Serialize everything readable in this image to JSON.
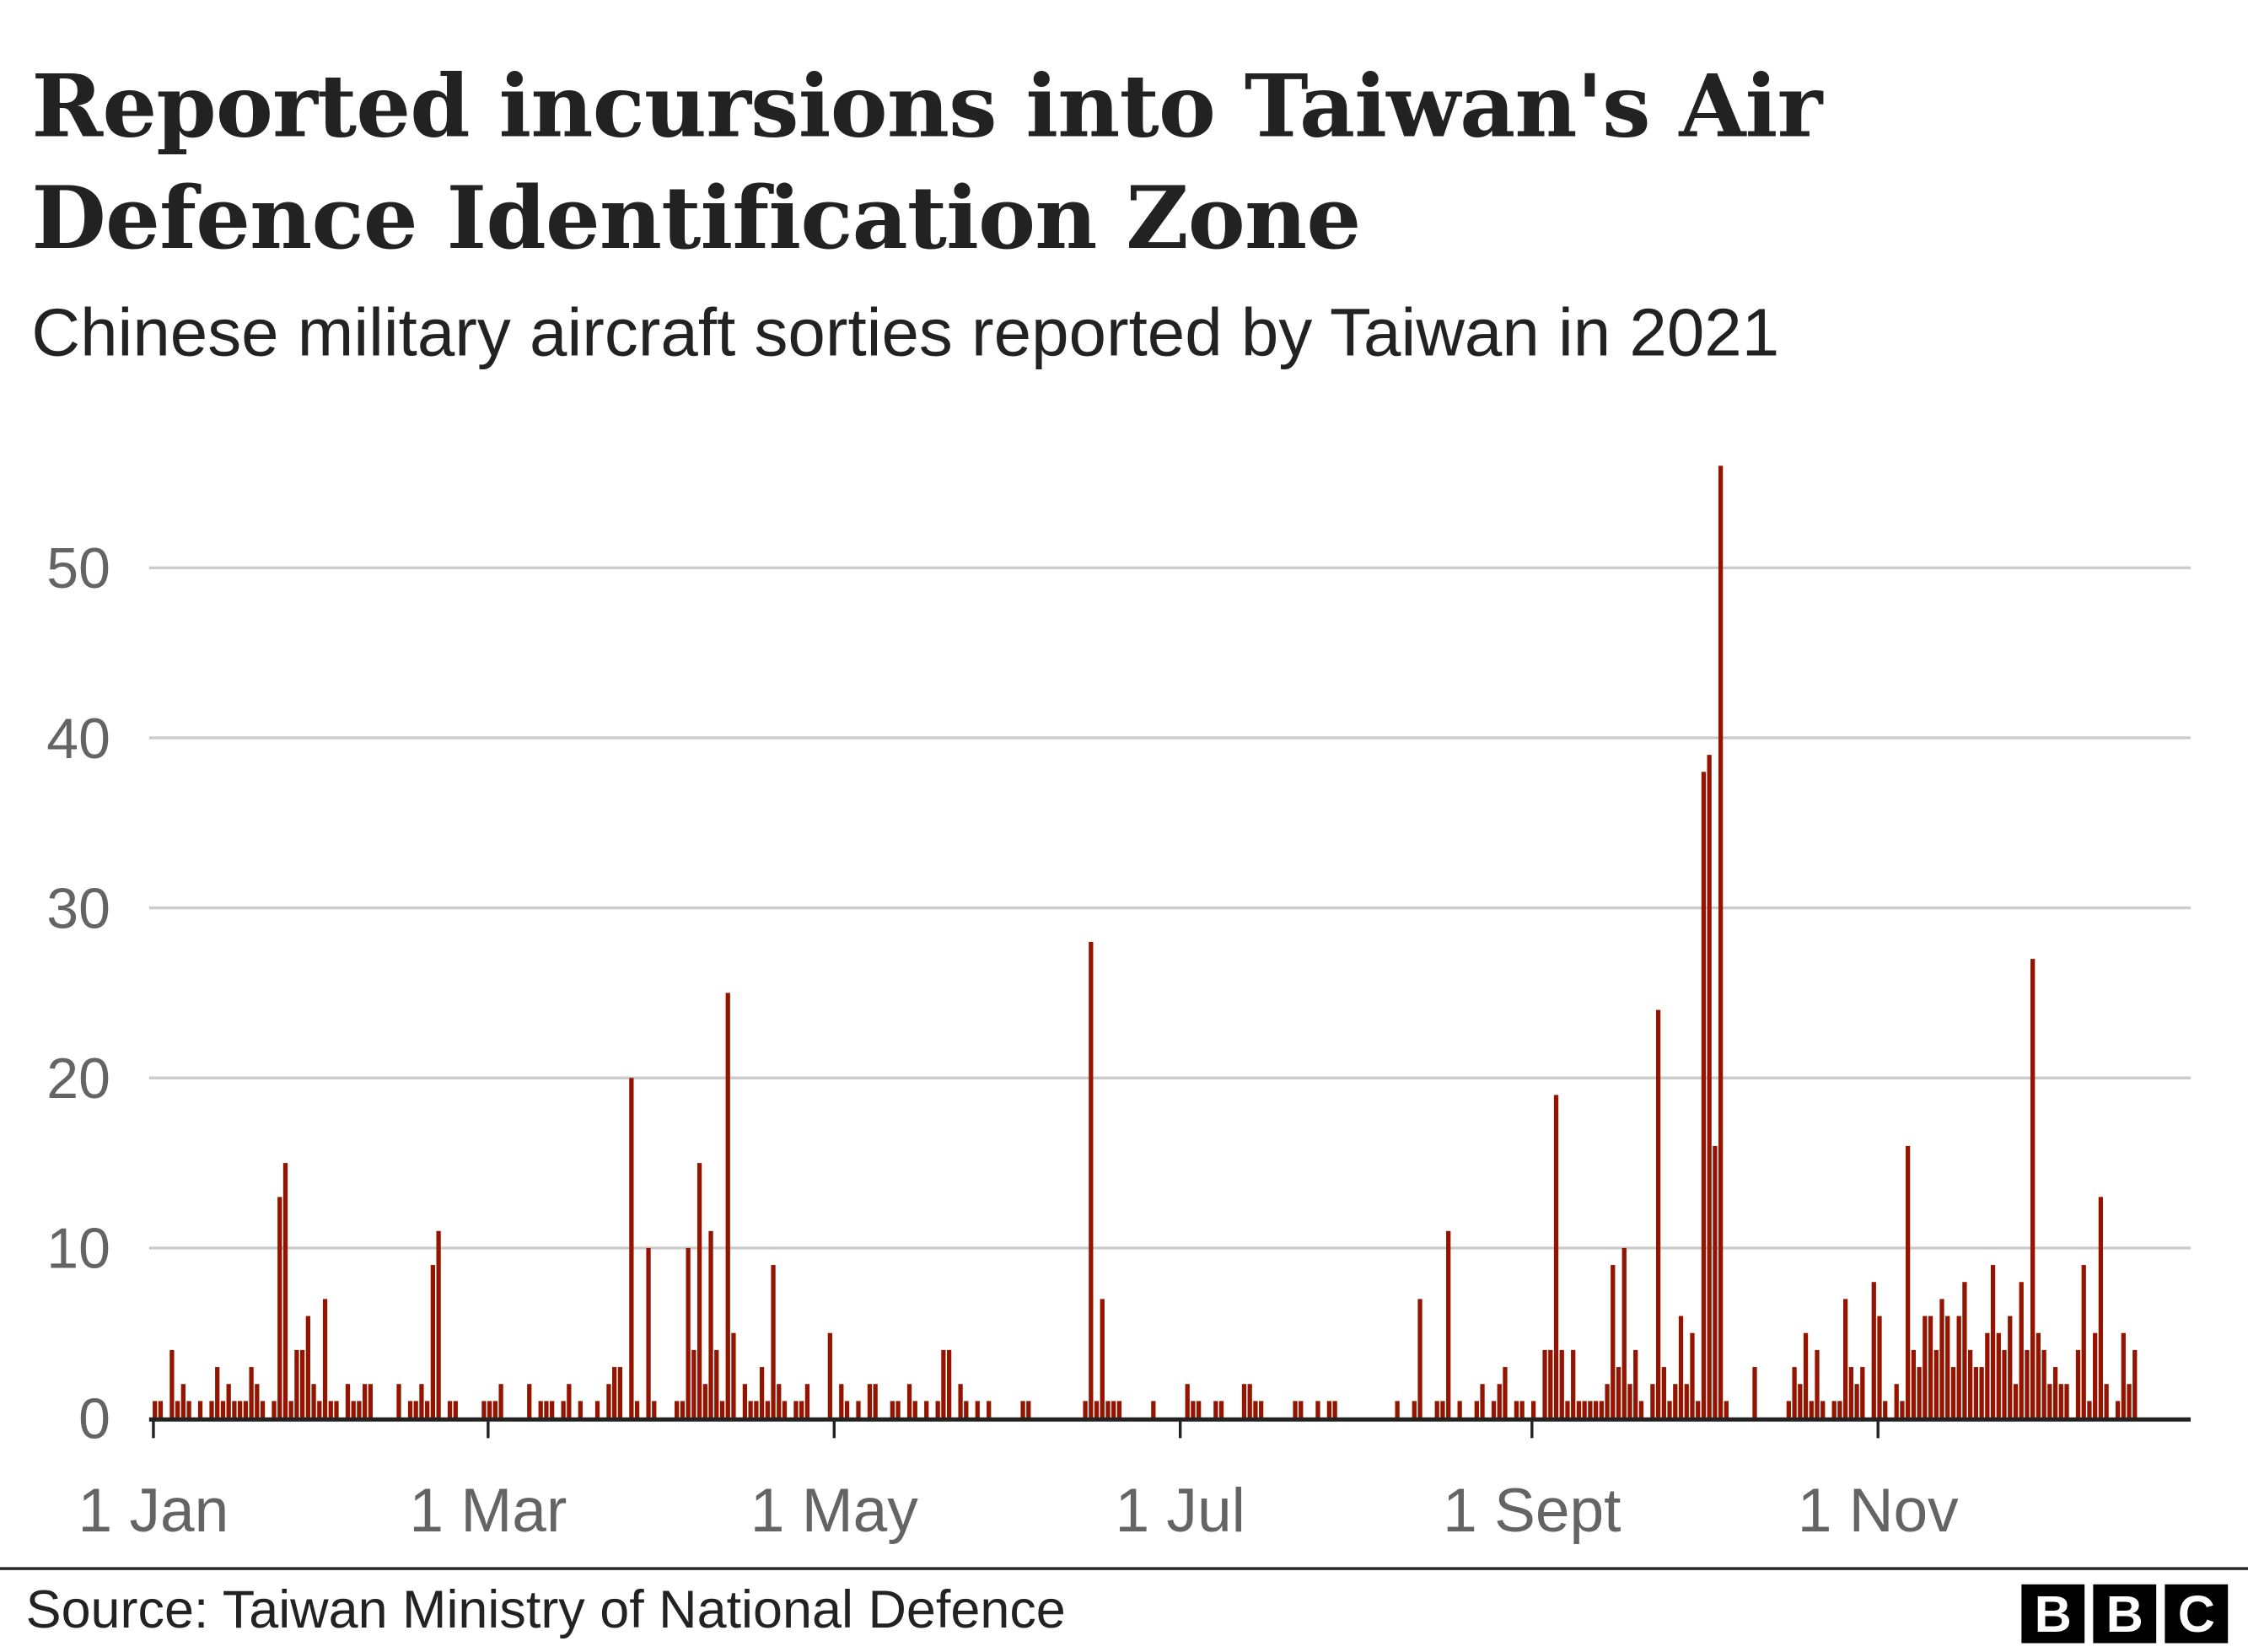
{
  "chart_data": {
    "type": "bar",
    "title": "Reported incursions into Taiwan's Air Defence Identification Zone",
    "subtitle": "Chinese military aircraft sorties reported by Taiwan in 2021",
    "xlabel": "",
    "ylabel": "",
    "ylim": [
      0,
      56
    ],
    "xlim_days": [
      0,
      360
    ],
    "grid": true,
    "yticks": [
      {
        "value": 0,
        "label": "0"
      },
      {
        "value": 10,
        "label": "10"
      },
      {
        "value": 20,
        "label": "20"
      },
      {
        "value": 30,
        "label": "30"
      },
      {
        "value": 40,
        "label": "40"
      },
      {
        "value": 50,
        "label": "50"
      }
    ],
    "xticks": [
      {
        "day": 0,
        "label": "1 Jan"
      },
      {
        "day": 59,
        "label": "1 Mar"
      },
      {
        "day": 120,
        "label": "1 May"
      },
      {
        "day": 181,
        "label": "1 Jul"
      },
      {
        "day": 243,
        "label": "1 Sept"
      },
      {
        "day": 304,
        "label": "1 Nov"
      }
    ],
    "series_name": "Sorties per day (day of year, count)",
    "points": [
      [
        0,
        1
      ],
      [
        1,
        1
      ],
      [
        3,
        4
      ],
      [
        4,
        1
      ],
      [
        5,
        2
      ],
      [
        6,
        1
      ],
      [
        8,
        1
      ],
      [
        10,
        1
      ],
      [
        11,
        3
      ],
      [
        12,
        1
      ],
      [
        13,
        2
      ],
      [
        14,
        1
      ],
      [
        15,
        1
      ],
      [
        16,
        1
      ],
      [
        17,
        3
      ],
      [
        18,
        2
      ],
      [
        19,
        1
      ],
      [
        21,
        1
      ],
      [
        22,
        13
      ],
      [
        23,
        15
      ],
      [
        24,
        1
      ],
      [
        25,
        4
      ],
      [
        26,
        4
      ],
      [
        27,
        6
      ],
      [
        28,
        2
      ],
      [
        29,
        1
      ],
      [
        30,
        7
      ],
      [
        31,
        1
      ],
      [
        32,
        1
      ],
      [
        34,
        2
      ],
      [
        35,
        1
      ],
      [
        36,
        1
      ],
      [
        37,
        2
      ],
      [
        38,
        2
      ],
      [
        43,
        2
      ],
      [
        45,
        1
      ],
      [
        46,
        1
      ],
      [
        47,
        2
      ],
      [
        48,
        1
      ],
      [
        49,
        9
      ],
      [
        50,
        11
      ],
      [
        52,
        1
      ],
      [
        53,
        1
      ],
      [
        58,
        1
      ],
      [
        59,
        1
      ],
      [
        60,
        1
      ],
      [
        61,
        2
      ],
      [
        66,
        2
      ],
      [
        68,
        1
      ],
      [
        69,
        1
      ],
      [
        70,
        1
      ],
      [
        72,
        1
      ],
      [
        73,
        2
      ],
      [
        75,
        1
      ],
      [
        78,
        1
      ],
      [
        80,
        2
      ],
      [
        81,
        3
      ],
      [
        82,
        3
      ],
      [
        84,
        20
      ],
      [
        85,
        1
      ],
      [
        87,
        10
      ],
      [
        88,
        1
      ],
      [
        92,
        1
      ],
      [
        93,
        1
      ],
      [
        94,
        10
      ],
      [
        95,
        4
      ],
      [
        96,
        15
      ],
      [
        97,
        2
      ],
      [
        98,
        11
      ],
      [
        99,
        4
      ],
      [
        100,
        1
      ],
      [
        101,
        25
      ],
      [
        102,
        5
      ],
      [
        104,
        2
      ],
      [
        105,
        1
      ],
      [
        106,
        1
      ],
      [
        107,
        3
      ],
      [
        108,
        1
      ],
      [
        109,
        9
      ],
      [
        110,
        2
      ],
      [
        111,
        1
      ],
      [
        113,
        1
      ],
      [
        114,
        1
      ],
      [
        115,
        2
      ],
      [
        119,
        5
      ],
      [
        121,
        2
      ],
      [
        122,
        1
      ],
      [
        124,
        1
      ],
      [
        126,
        2
      ],
      [
        127,
        2
      ],
      [
        130,
        1
      ],
      [
        131,
        1
      ],
      [
        133,
        2
      ],
      [
        134,
        1
      ],
      [
        136,
        1
      ],
      [
        138,
        1
      ],
      [
        139,
        4
      ],
      [
        140,
        4
      ],
      [
        142,
        2
      ],
      [
        143,
        1
      ],
      [
        145,
        1
      ],
      [
        147,
        1
      ],
      [
        153,
        1
      ],
      [
        154,
        1
      ],
      [
        164,
        1
      ],
      [
        165,
        28
      ],
      [
        166,
        1
      ],
      [
        167,
        7
      ],
      [
        168,
        1
      ],
      [
        169,
        1
      ],
      [
        170,
        1
      ],
      [
        176,
        1
      ],
      [
        182,
        2
      ],
      [
        183,
        1
      ],
      [
        184,
        1
      ],
      [
        187,
        1
      ],
      [
        188,
        1
      ],
      [
        192,
        2
      ],
      [
        193,
        2
      ],
      [
        194,
        1
      ],
      [
        195,
        1
      ],
      [
        201,
        1
      ],
      [
        202,
        1
      ],
      [
        205,
        1
      ],
      [
        207,
        1
      ],
      [
        208,
        1
      ],
      [
        219,
        1
      ],
      [
        222,
        1
      ],
      [
        223,
        7
      ],
      [
        226,
        1
      ],
      [
        227,
        1
      ],
      [
        228,
        11
      ],
      [
        230,
        1
      ],
      [
        233,
        1
      ],
      [
        234,
        2
      ],
      [
        236,
        1
      ],
      [
        237,
        2
      ],
      [
        238,
        3
      ],
      [
        240,
        1
      ],
      [
        241,
        1
      ],
      [
        243,
        1
      ],
      [
        245,
        4
      ],
      [
        246,
        4
      ],
      [
        247,
        19
      ],
      [
        248,
        4
      ],
      [
        249,
        1
      ],
      [
        250,
        4
      ],
      [
        251,
        1
      ],
      [
        252,
        1
      ],
      [
        253,
        1
      ],
      [
        254,
        1
      ],
      [
        255,
        1
      ],
      [
        256,
        2
      ],
      [
        257,
        9
      ],
      [
        258,
        3
      ],
      [
        259,
        10
      ],
      [
        260,
        2
      ],
      [
        261,
        4
      ],
      [
        262,
        1
      ],
      [
        264,
        2
      ],
      [
        265,
        24
      ],
      [
        266,
        3
      ],
      [
        267,
        1
      ],
      [
        268,
        2
      ],
      [
        269,
        6
      ],
      [
        270,
        2
      ],
      [
        271,
        5
      ],
      [
        272,
        1
      ],
      [
        273,
        38
      ],
      [
        274,
        39
      ],
      [
        275,
        16
      ],
      [
        276,
        56
      ],
      [
        277,
        1
      ],
      [
        282,
        3
      ],
      [
        288,
        1
      ],
      [
        289,
        3
      ],
      [
        290,
        2
      ],
      [
        291,
        5
      ],
      [
        292,
        1
      ],
      [
        293,
        4
      ],
      [
        294,
        1
      ],
      [
        296,
        1
      ],
      [
        297,
        1
      ],
      [
        298,
        7
      ],
      [
        299,
        3
      ],
      [
        300,
        2
      ],
      [
        301,
        3
      ],
      [
        303,
        8
      ],
      [
        304,
        6
      ],
      [
        305,
        1
      ],
      [
        307,
        2
      ],
      [
        308,
        1
      ],
      [
        309,
        16
      ],
      [
        310,
        4
      ],
      [
        311,
        3
      ],
      [
        312,
        6
      ],
      [
        313,
        6
      ],
      [
        314,
        4
      ],
      [
        315,
        7
      ],
      [
        316,
        6
      ],
      [
        317,
        3
      ],
      [
        318,
        6
      ],
      [
        319,
        8
      ],
      [
        320,
        4
      ],
      [
        321,
        3
      ],
      [
        322,
        3
      ],
      [
        323,
        5
      ],
      [
        324,
        9
      ],
      [
        325,
        5
      ],
      [
        326,
        4
      ],
      [
        327,
        6
      ],
      [
        328,
        2
      ],
      [
        329,
        8
      ],
      [
        330,
        4
      ],
      [
        331,
        27
      ],
      [
        332,
        5
      ],
      [
        333,
        4
      ],
      [
        334,
        2
      ],
      [
        335,
        3
      ],
      [
        336,
        2
      ],
      [
        337,
        2
      ],
      [
        339,
        4
      ],
      [
        340,
        9
      ],
      [
        341,
        1
      ],
      [
        342,
        5
      ],
      [
        343,
        13
      ],
      [
        344,
        2
      ],
      [
        346,
        1
      ],
      [
        347,
        5
      ],
      [
        348,
        2
      ],
      [
        349,
        4
      ]
    ],
    "bar_color": "#951400"
  },
  "footer": {
    "source": "Source: Taiwan Ministry of National Defence",
    "logo": "BBC",
    "logo_letters": [
      "B",
      "B",
      "C"
    ]
  }
}
